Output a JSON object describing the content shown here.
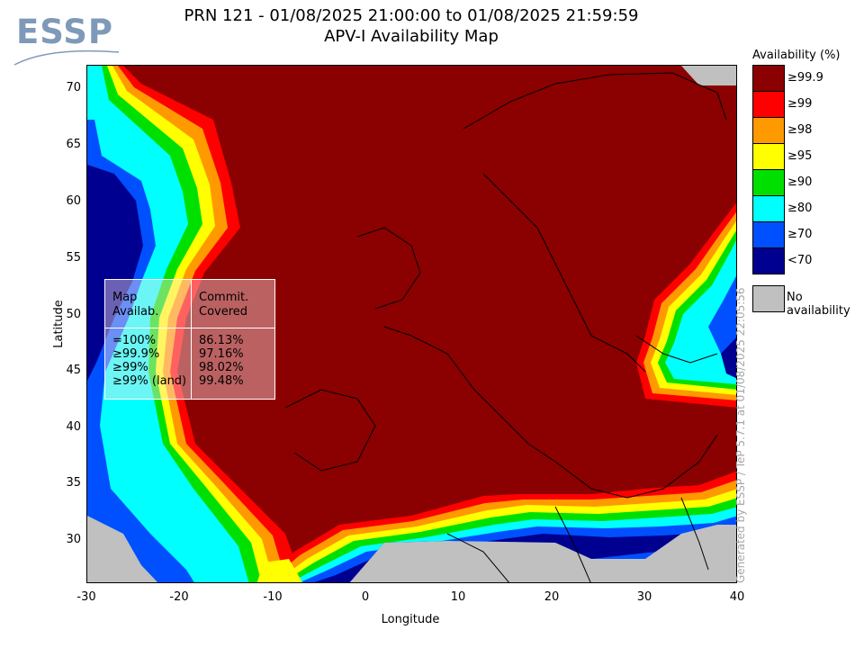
{
  "logo": {
    "text": "ESSP"
  },
  "title": {
    "line1": "PRN 121 - 01/08/2025 21:00:00 to 01/08/2025 21:59:59",
    "line2": "APV-I Availability Map"
  },
  "axes": {
    "xlabel": "Longitude",
    "ylabel": "Latitude",
    "xticks": [
      "-30",
      "-20",
      "-10",
      "0",
      "10",
      "20",
      "30",
      "40"
    ],
    "yticks": [
      "70",
      "65",
      "60",
      "55",
      "50",
      "45",
      "40",
      "35",
      "30"
    ],
    "xlim": [
      -30,
      40
    ],
    "ylim": [
      26,
      72
    ]
  },
  "legend": {
    "title": "Availability (%)",
    "items": [
      {
        "label": "≥99.9",
        "color": "#8b0000"
      },
      {
        "label": "≥99",
        "color": "#ff0000"
      },
      {
        "label": "≥98",
        "color": "#ff9900"
      },
      {
        "label": "≥95",
        "color": "#ffff00"
      },
      {
        "label": "≥90",
        "color": "#00e000"
      },
      {
        "label": "≥80",
        "color": "#00ffff"
      },
      {
        "label": "<70",
        "color": "#000090"
      },
      {
        "label": "≥70",
        "color": "#0050ff"
      }
    ],
    "no_availability": {
      "label": "No availability",
      "color": "#c0c0c0"
    }
  },
  "stats_table": {
    "header_left": "Map Availab.",
    "header_right": "Commit. Covered",
    "rows": [
      {
        "label": "=100%",
        "value": "86.13%"
      },
      {
        "label": "≥99.9%",
        "value": "97.16%"
      },
      {
        "label": "≥99%",
        "value": "98.02%"
      },
      {
        "label": "≥99% (land)",
        "value": "99.48%"
      }
    ]
  },
  "credit": "Generated by ESSP / TeP 5.7.1 at 01/08/2025 22:05:56",
  "chart_data": {
    "type": "heatmap",
    "title": "APV-I Availability Map",
    "xlabel": "Longitude",
    "ylabel": "Latitude",
    "xlim": [
      -30,
      40
    ],
    "ylim": [
      26,
      72
    ],
    "levels": [
      "<70",
      "≥70",
      "≥80",
      "≥90",
      "≥95",
      "≥98",
      "≥99",
      "≥99.9"
    ],
    "dominant_level": "≥99.9"
  }
}
